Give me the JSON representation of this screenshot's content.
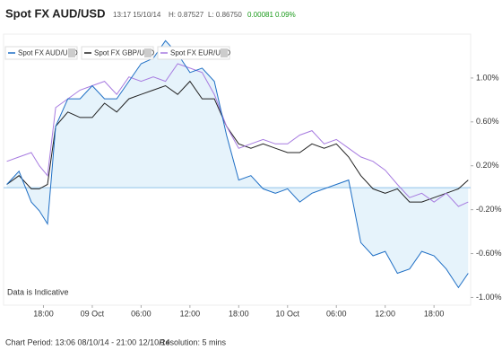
{
  "header": {
    "title": "Spot FX AUD/USD",
    "time": "13:17 15/10/14",
    "high": "H: 0.87527",
    "low": "L: 0.86750",
    "change": "0.00081",
    "change_pct": "0.09%"
  },
  "chart_data": {
    "type": "line",
    "x": [
      13.5,
      15,
      16.5,
      17.5,
      18.5,
      19.5,
      21,
      22.5,
      24,
      25.5,
      27,
      28.5,
      30,
      31.5,
      33,
      34.5,
      36,
      37.5,
      39,
      40.5,
      42,
      43.5,
      45,
      46.5,
      48,
      49.5,
      51,
      52.5,
      54,
      55.5,
      57,
      58.5,
      60,
      61.5,
      63,
      64.5,
      66,
      67.5,
      69,
      70.2
    ],
    "series": [
      {
        "name": "Spot FX AUD/USD",
        "color": "#1f6fc5",
        "area_color": "#dbeefa",
        "values": [
          0.03,
          0.15,
          -0.13,
          -0.21,
          -0.33,
          0.56,
          0.81,
          0.81,
          0.93,
          0.81,
          0.81,
          0.97,
          1.13,
          1.18,
          1.34,
          1.22,
          1.05,
          1.09,
          0.97,
          0.48,
          0.07,
          0.11,
          -0.01,
          -0.05,
          -0.01,
          -0.13,
          -0.05,
          -0.01,
          0.03,
          0.07,
          -0.5,
          -0.62,
          -0.58,
          -0.78,
          -0.74,
          -0.58,
          -0.62,
          -0.74,
          -0.91,
          -0.78
        ]
      },
      {
        "name": "Spot FX GBP/USD",
        "color": "#222222",
        "values": [
          0.03,
          0.11,
          -0.01,
          -0.01,
          0.03,
          0.56,
          0.69,
          0.64,
          0.64,
          0.77,
          0.69,
          0.81,
          0.85,
          0.89,
          0.93,
          0.85,
          0.97,
          0.81,
          0.81,
          0.56,
          0.4,
          0.36,
          0.4,
          0.36,
          0.32,
          0.32,
          0.4,
          0.36,
          0.4,
          0.28,
          0.11,
          -0.01,
          -0.05,
          -0.01,
          -0.13,
          -0.13,
          -0.09,
          -0.05,
          -0.01,
          0.07
        ]
      },
      {
        "name": "Spot FX EUR/USD",
        "color": "#a77be0",
        "values": [
          0.24,
          0.28,
          0.32,
          0.2,
          0.11,
          0.73,
          0.81,
          0.89,
          0.93,
          0.97,
          0.85,
          1.01,
          0.97,
          1.01,
          0.97,
          1.13,
          1.09,
          1.05,
          0.85,
          0.56,
          0.36,
          0.4,
          0.44,
          0.4,
          0.4,
          0.48,
          0.52,
          0.4,
          0.44,
          0.36,
          0.28,
          0.24,
          0.16,
          0.03,
          -0.09,
          -0.05,
          -0.13,
          -0.05,
          -0.17,
          -0.13
        ]
      }
    ],
    "xlim": [
      13.1,
      70.5
    ],
    "xticks": [
      {
        "value": 18,
        "label": "18:00"
      },
      {
        "value": 24,
        "label": "09 Oct"
      },
      {
        "value": 30,
        "label": "06:00"
      },
      {
        "value": 36,
        "label": "12:00"
      },
      {
        "value": 42,
        "label": "18:00"
      },
      {
        "value": 48,
        "label": "10 Oct"
      },
      {
        "value": 54,
        "label": "06:00"
      },
      {
        "value": 60,
        "label": "12:00"
      },
      {
        "value": 66,
        "label": "18:00"
      }
    ],
    "ylim": [
      -1.07,
      1.4
    ],
    "yticks": [
      {
        "value": 1,
        "label": "1.00%"
      },
      {
        "value": 0.6,
        "label": "0.60%"
      },
      {
        "value": 0.2,
        "label": "0.20%"
      },
      {
        "value": -0.2,
        "label": "-0.20%"
      },
      {
        "value": -0.6,
        "label": "-0.60%"
      },
      {
        "value": -1,
        "label": "-1.00%"
      }
    ],
    "grid": false,
    "annotation": "Data is Indicative"
  },
  "footer": {
    "period": "Chart Period: 13:06 08/10/14 - 21:00 12/10/14",
    "resolution": "Resolution: 5 mins"
  }
}
